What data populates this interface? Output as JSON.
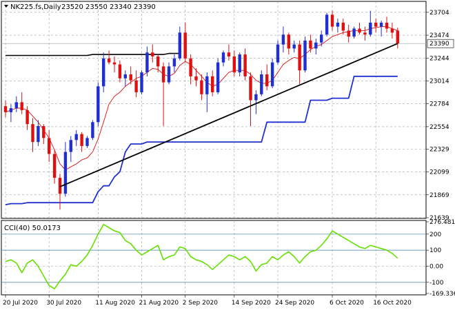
{
  "header": {
    "symbol": "NK225.fs,Daily",
    "ohlc": "23520 23550 23340 23390"
  },
  "colors": {
    "bull": "#1f2fd0",
    "bear": "#e01010",
    "kijun": "#1f2fd0",
    "tenkan": "#e01010",
    "trend": "#000000",
    "cci": "#66e000",
    "grid": "#9aa0a6",
    "level": "#5a8fb0"
  },
  "chart_data": [
    {
      "type": "candlestick",
      "title": "NK225.fs,Daily",
      "last_price": "23390",
      "ylim": [
        21639,
        23800
      ],
      "y_ticks": [
        "23704",
        "23474",
        "23244",
        "23014",
        "22784",
        "22554",
        "22329",
        "22099",
        "21869",
        "21639"
      ],
      "x_ticks": [
        "20 Jul 2020",
        "30 Jul 2020",
        "11 Aug 2020",
        "21 Aug 2020",
        "2 Sep 2020",
        "14 Sep 2020",
        "24 Sep 2020",
        "6 Oct 2020",
        "16 Oct 2020"
      ],
      "x_tick_index": [
        0,
        8,
        17,
        25,
        33,
        42,
        50,
        60,
        68
      ],
      "candles": [
        [
          22760,
          22820,
          22650,
          22700
        ],
        [
          22700,
          22780,
          22600,
          22740
        ],
        [
          22740,
          22860,
          22700,
          22800
        ],
        [
          22800,
          22900,
          22680,
          22720
        ],
        [
          22720,
          22760,
          22520,
          22580
        ],
        [
          22580,
          22640,
          22300,
          22400
        ],
        [
          22400,
          22620,
          22360,
          22560
        ],
        [
          22560,
          22580,
          22380,
          22440
        ],
        [
          22440,
          22520,
          22200,
          22280
        ],
        [
          22280,
          22320,
          21980,
          22040
        ],
        [
          22040,
          22080,
          21720,
          21880
        ],
        [
          21880,
          22400,
          21850,
          22300
        ],
        [
          22300,
          22460,
          22200,
          22420
        ],
        [
          22420,
          22520,
          22360,
          22480
        ],
        [
          22480,
          22500,
          22300,
          22360
        ],
        [
          22360,
          22460,
          22340,
          22440
        ],
        [
          22440,
          22620,
          22420,
          22600
        ],
        [
          22600,
          23000,
          22560,
          22960
        ],
        [
          22960,
          23300,
          22900,
          23240
        ],
        [
          23240,
          23320,
          23180,
          23200
        ],
        [
          23200,
          23260,
          23100,
          23180
        ],
        [
          23180,
          23220,
          23000,
          23040
        ],
        [
          23040,
          23120,
          22960,
          23080
        ],
        [
          23080,
          23160,
          22980,
          23020
        ],
        [
          23020,
          23120,
          22850,
          22900
        ],
        [
          22900,
          23120,
          22880,
          23100
        ],
        [
          23100,
          23360,
          23060,
          23300
        ],
        [
          23300,
          23380,
          23200,
          23260
        ],
        [
          23260,
          23280,
          23100,
          23160
        ],
        [
          23160,
          23200,
          22560,
          23000
        ],
        [
          23000,
          23200,
          22980,
          23160
        ],
        [
          23160,
          23280,
          23100,
          23240
        ],
        [
          23240,
          23560,
          23220,
          23500
        ],
        [
          23500,
          23600,
          23200,
          23240
        ],
        [
          23240,
          23280,
          22980,
          23060
        ],
        [
          23060,
          23140,
          22960,
          23020
        ],
        [
          23020,
          23080,
          22820,
          22880
        ],
        [
          22880,
          23100,
          22700,
          23060
        ],
        [
          23060,
          23120,
          22860,
          22900
        ],
        [
          22900,
          23240,
          22880,
          23200
        ],
        [
          23200,
          23320,
          23160,
          23300
        ],
        [
          23300,
          23380,
          23220,
          23260
        ],
        [
          23260,
          23320,
          23060,
          23100
        ],
        [
          23100,
          23300,
          23060,
          23280
        ],
        [
          23280,
          23340,
          23020,
          23060
        ],
        [
          23060,
          23100,
          22560,
          22820
        ],
        [
          22820,
          22920,
          22680,
          22880
        ],
        [
          22880,
          23120,
          22860,
          23080
        ],
        [
          23080,
          23180,
          22920,
          22960
        ],
        [
          22960,
          23240,
          22940,
          23200
        ],
        [
          23200,
          23420,
          23180,
          23380
        ],
        [
          23380,
          23560,
          23300,
          23480
        ],
        [
          23480,
          23500,
          23280,
          23340
        ],
        [
          23340,
          23420,
          23300,
          23380
        ],
        [
          23380,
          23420,
          22980,
          23120
        ],
        [
          23120,
          23460,
          23100,
          23420
        ],
        [
          23420,
          23480,
          23300,
          23340
        ],
        [
          23340,
          23440,
          23280,
          23400
        ],
        [
          23400,
          23520,
          23360,
          23480
        ],
        [
          23480,
          23700,
          23460,
          23680
        ],
        [
          23680,
          23720,
          23520,
          23560
        ],
        [
          23560,
          23640,
          23500,
          23600
        ],
        [
          23600,
          23640,
          23480,
          23520
        ],
        [
          23520,
          23580,
          23400,
          23460
        ],
        [
          23460,
          23560,
          23440,
          23540
        ],
        [
          23540,
          23600,
          23480,
          23500
        ],
        [
          23500,
          23560,
          23420,
          23480
        ],
        [
          23480,
          23720,
          23460,
          23600
        ],
        [
          23600,
          23640,
          23500,
          23560
        ],
        [
          23560,
          23620,
          23460,
          23600
        ],
        [
          23600,
          23660,
          23500,
          23540
        ],
        [
          23540,
          23600,
          23440,
          23500
        ],
        [
          23520,
          23550,
          23340,
          23390
        ]
      ],
      "tenkan": [
        22700,
        22720,
        22740,
        22740,
        22720,
        22660,
        22600,
        22520,
        22440,
        22320,
        22180,
        22120,
        22150,
        22180,
        22220,
        22240,
        22300,
        22430,
        22600,
        22780,
        22860,
        22900,
        22960,
        23000,
        23040,
        23060,
        23100,
        23140,
        23130,
        23080,
        23060,
        23090,
        23170,
        23210,
        23180,
        23120,
        23060,
        23000,
        22960,
        22980,
        23040,
        23100,
        23120,
        23120,
        23120,
        23080,
        23020,
        22990,
        22990,
        23020,
        23100,
        23180,
        23220,
        23250,
        23240,
        23280,
        23330,
        23360,
        23380,
        23420,
        23460,
        23480,
        23500,
        23510,
        23520,
        23520,
        23520,
        23540,
        23550,
        23560,
        23560,
        23540,
        23520
      ],
      "kijun": [
        21770,
        21780,
        21780,
        21780,
        21790,
        21790,
        21790,
        21790,
        21790,
        21790,
        21790,
        21790,
        21790,
        21790,
        21790,
        21790,
        21790,
        21900,
        21960,
        21960,
        22050,
        22100,
        22300,
        22380,
        22380,
        22380,
        22400,
        22400,
        22400,
        22400,
        22400,
        22400,
        22400,
        22400,
        22400,
        22400,
        22400,
        22400,
        22400,
        22400,
        22400,
        22400,
        22400,
        22400,
        22400,
        22400,
        22400,
        22400,
        22600,
        22600,
        22600,
        22600,
        22600,
        22600,
        22600,
        22600,
        22820,
        22820,
        22820,
        22820,
        22840,
        22840,
        22840,
        22840,
        23060,
        23060,
        23060,
        23060,
        23060,
        23060,
        23060,
        23060,
        23060
      ],
      "upper_line": [
        23270,
        23270,
        23270,
        23270,
        23270,
        23270,
        23270,
        23270,
        23270,
        23270,
        23270,
        23270,
        23270,
        23270,
        23270,
        23270,
        23280,
        23280,
        23280,
        23280,
        23280,
        23280,
        23280,
        23280,
        23280,
        23280,
        23280,
        23280,
        23280,
        23280,
        23290,
        23290,
        23290
      ],
      "trend_line": {
        "from": [
          10,
          21950
        ],
        "to": [
          72,
          23390
        ]
      }
    },
    {
      "type": "line",
      "title": "CCI(40) 50.0173",
      "ylim": [
        -169.336,
        276.4817
      ],
      "y_ticks": [
        "276.4817",
        "200",
        "100",
        "0.00",
        "-100",
        "-169.336"
      ],
      "levels": [
        200,
        100,
        -100
      ],
      "values": [
        30,
        40,
        20,
        -40,
        20,
        40,
        0,
        -60,
        -120,
        -140,
        -90,
        -50,
        10,
        0,
        30,
        70,
        130,
        200,
        260,
        240,
        220,
        210,
        160,
        140,
        100,
        70,
        90,
        110,
        130,
        40,
        60,
        70,
        120,
        110,
        60,
        40,
        30,
        10,
        -20,
        10,
        40,
        70,
        60,
        40,
        60,
        30,
        -30,
        10,
        20,
        60,
        40,
        70,
        90,
        60,
        20,
        60,
        90,
        100,
        130,
        170,
        220,
        200,
        180,
        160,
        140,
        120,
        110,
        130,
        120,
        110,
        100,
        80,
        50
      ]
    }
  ]
}
